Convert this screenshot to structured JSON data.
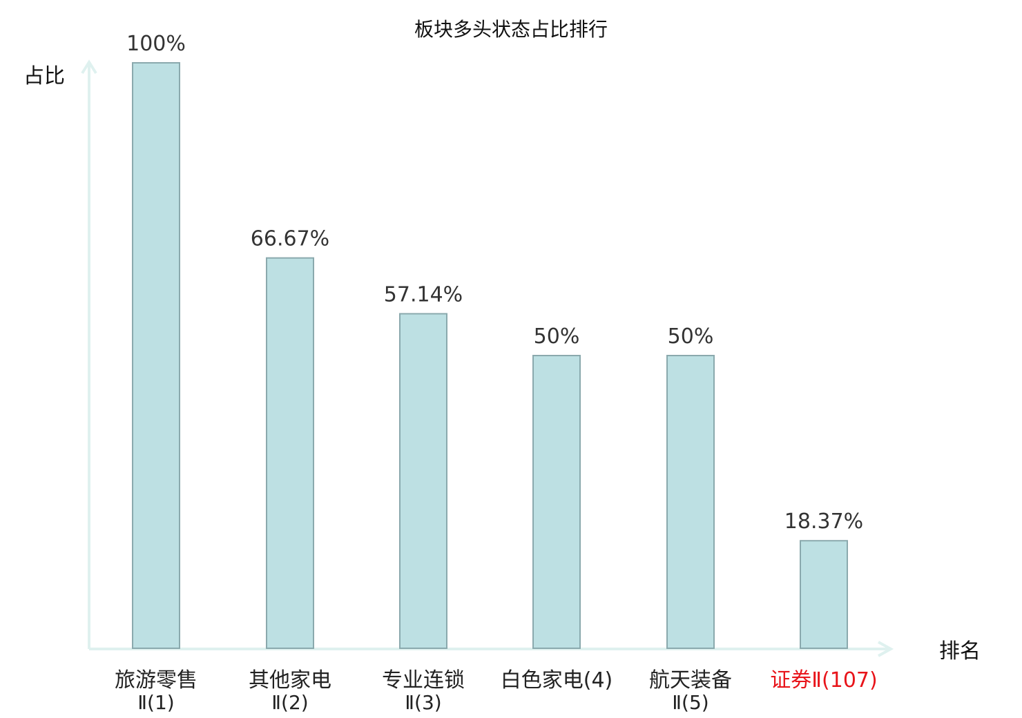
{
  "chart_data": {
    "type": "bar",
    "title": "板块多头状态占比排行",
    "ylabel": "占比",
    "xlabel": "排名",
    "ylim": [
      0,
      100
    ],
    "grid": false,
    "categories": [
      [
        "旅游零售",
        "Ⅱ(1)"
      ],
      [
        "其他家电",
        "Ⅱ(2)"
      ],
      [
        "专业连锁",
        "Ⅱ(3)"
      ],
      [
        "白色家电(4)"
      ],
      [
        "航天装备",
        "Ⅱ(5)"
      ],
      [
        "证券Ⅱ(107)"
      ]
    ],
    "values": [
      100,
      66.67,
      57.14,
      50,
      50,
      18.37
    ],
    "value_labels": [
      "100%",
      "66.67%",
      "57.14%",
      "50%",
      "50%",
      "18.37%"
    ],
    "highlight_index": 5,
    "colors": {
      "bar_fill": "#bde0e3",
      "bar_stroke": "#8aa9ad",
      "axis": "#dff1ef",
      "text": "#222222",
      "highlight_text": "#e8141a"
    }
  }
}
